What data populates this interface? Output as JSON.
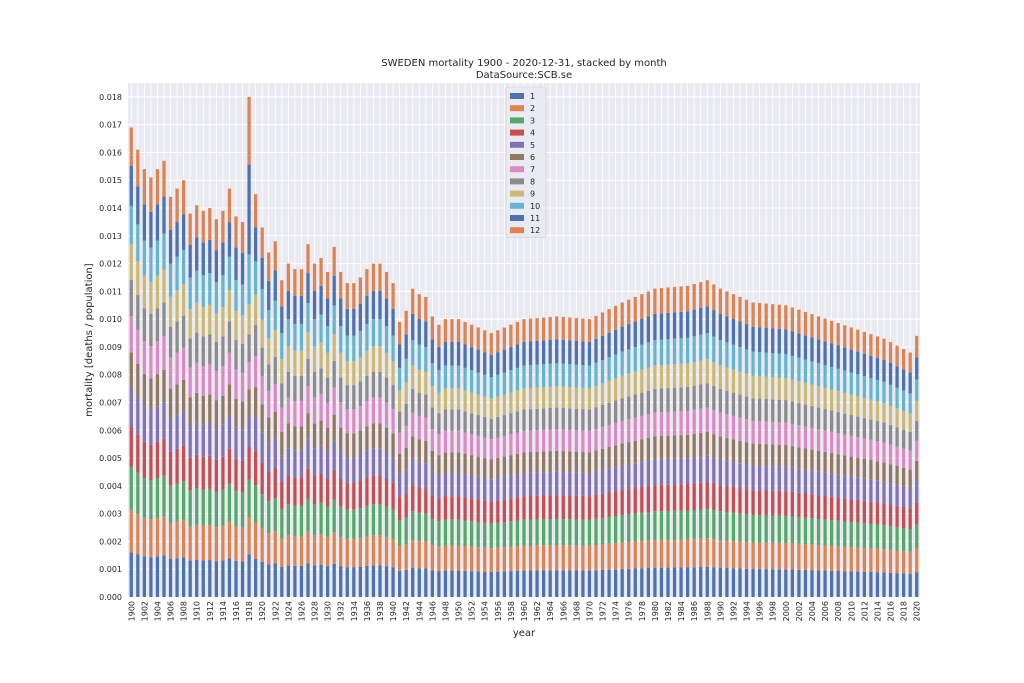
{
  "chart_data": {
    "type": "bar",
    "stacked": true,
    "title": "SWEDEN mortality 1900 - 2020-12-31, stacked by month",
    "subtitle": "DataSource:SCB.se",
    "xlabel": "year",
    "ylabel": "mortality [deaths / population]",
    "ylim": [
      0,
      0.0185
    ],
    "yticks": [
      "0.000",
      "0.001",
      "0.002",
      "0.003",
      "0.004",
      "0.005",
      "0.006",
      "0.007",
      "0.008",
      "0.009",
      "0.010",
      "0.011",
      "0.012",
      "0.013",
      "0.014",
      "0.015",
      "0.016",
      "0.017",
      "0.018"
    ],
    "x_start": 1900,
    "x_end": 2020,
    "x_tick_step": 2,
    "grid": true,
    "legend_position": "top-center",
    "colors": [
      "#4c72b0",
      "#dd8452",
      "#55a868",
      "#c44e52",
      "#8172b3",
      "#937860",
      "#da8bc3",
      "#8c8c8c",
      "#ccb974",
      "#64b5cd",
      "#4c72b0",
      "#dd8452"
    ],
    "series": [
      {
        "name": "1"
      },
      {
        "name": "2"
      },
      {
        "name": "3"
      },
      {
        "name": "4"
      },
      {
        "name": "5"
      },
      {
        "name": "6"
      },
      {
        "name": "7"
      },
      {
        "name": "8"
      },
      {
        "name": "9"
      },
      {
        "name": "10"
      },
      {
        "name": "11"
      },
      {
        "name": "12"
      }
    ],
    "annual_totals": {
      "anchors_years": [
        1900,
        1901,
        1902,
        1903,
        1904,
        1905,
        1906,
        1907,
        1908,
        1909,
        1910,
        1911,
        1912,
        1913,
        1914,
        1915,
        1916,
        1917,
        1918,
        1919,
        1920,
        1921,
        1922,
        1923,
        1924,
        1925,
        1926,
        1927,
        1928,
        1929,
        1930,
        1931,
        1932,
        1933,
        1934,
        1935,
        1936,
        1937,
        1938,
        1939,
        1940,
        1941,
        1942,
        1943,
        1944,
        1945,
        1946,
        1947,
        1948,
        1950,
        1955,
        1960,
        1965,
        1970,
        1975,
        1980,
        1985,
        1988,
        1990,
        1995,
        2000,
        2005,
        2010,
        2015,
        2019,
        2020
      ],
      "anchors_values": [
        0.0169,
        0.0161,
        0.0154,
        0.0151,
        0.0154,
        0.0157,
        0.0144,
        0.0147,
        0.015,
        0.0138,
        0.0141,
        0.0139,
        0.014,
        0.0136,
        0.0139,
        0.0147,
        0.0137,
        0.0135,
        0.018,
        0.0145,
        0.0133,
        0.0124,
        0.0128,
        0.0114,
        0.012,
        0.0118,
        0.0118,
        0.0127,
        0.012,
        0.0122,
        0.0117,
        0.0126,
        0.0117,
        0.0113,
        0.0113,
        0.0115,
        0.0118,
        0.012,
        0.012,
        0.0117,
        0.0113,
        0.0099,
        0.0103,
        0.0111,
        0.0109,
        0.0108,
        0.0101,
        0.0098,
        0.01,
        0.01,
        0.0095,
        0.01,
        0.0101,
        0.01,
        0.0106,
        0.0111,
        0.0112,
        0.0114,
        0.0111,
        0.0106,
        0.0105,
        0.0101,
        0.0097,
        0.0093,
        0.0088,
        0.0094
      ]
    },
    "monthly_share_default": [
      0.095,
      0.09,
      0.093,
      0.085,
      0.083,
      0.075,
      0.077,
      0.077,
      0.076,
      0.082,
      0.085,
      0.082
    ]
  }
}
